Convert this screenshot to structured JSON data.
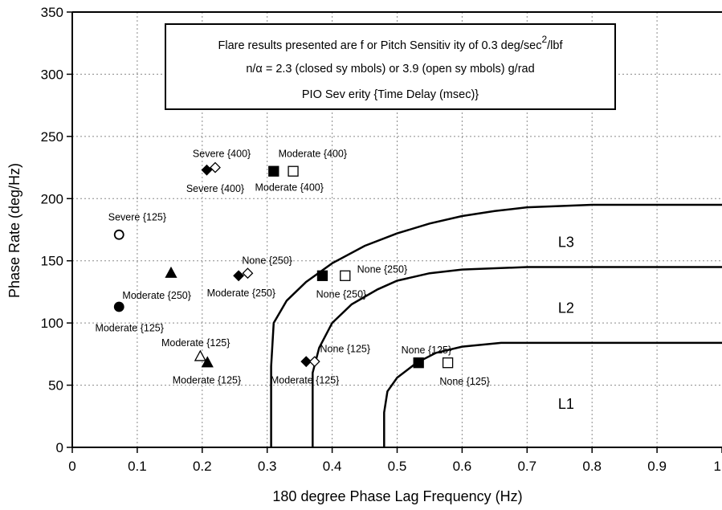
{
  "chart_data": {
    "type": "scatter",
    "xlabel": "180 degree Phase Lag Frequency (Hz)",
    "ylabel": "Phase Rate (deg/Hz)",
    "xlim": [
      0,
      1
    ],
    "ylim": [
      0,
      350
    ],
    "grid": true,
    "x_ticks": [
      "0",
      "0.1",
      "0.2",
      "0.3",
      "0.4",
      "0.5",
      "0.6",
      "0.7",
      "0.8",
      "0.9",
      "1"
    ],
    "y_ticks": [
      "0",
      "50",
      "100",
      "150",
      "200",
      "250",
      "300",
      "350"
    ],
    "annotation": {
      "line1_pre": "Flare results presented are f or Pitch Sensitiv ity  of  0.3 deg/sec",
      "line1_sup": "2",
      "line1_post": "/lbf",
      "line2": "n/α = 2.3 (closed sy mbols) or 3.9 (open sy mbols) g/rad",
      "line3": "PIO Sev erity   {Time Delay  (msec)}"
    },
    "boundaries": [
      {
        "label": "L3",
        "points": [
          [
            0.306,
            0
          ],
          [
            0.306,
            65
          ],
          [
            0.31,
            100
          ],
          [
            0.33,
            118
          ],
          [
            0.36,
            133
          ],
          [
            0.4,
            148
          ],
          [
            0.45,
            162
          ],
          [
            0.5,
            172
          ],
          [
            0.55,
            180
          ],
          [
            0.6,
            186
          ],
          [
            0.65,
            190
          ],
          [
            0.7,
            193
          ],
          [
            0.8,
            195
          ],
          [
            1.0,
            195
          ]
        ]
      },
      {
        "label": "L2",
        "points": [
          [
            0.37,
            0
          ],
          [
            0.37,
            60
          ],
          [
            0.38,
            80
          ],
          [
            0.4,
            100
          ],
          [
            0.43,
            115
          ],
          [
            0.47,
            127
          ],
          [
            0.5,
            134
          ],
          [
            0.55,
            140
          ],
          [
            0.6,
            143
          ],
          [
            0.7,
            145
          ],
          [
            1.0,
            145
          ]
        ]
      },
      {
        "label": "L1",
        "points": [
          [
            0.48,
            0
          ],
          [
            0.48,
            28
          ],
          [
            0.485,
            45
          ],
          [
            0.5,
            56
          ],
          [
            0.53,
            68
          ],
          [
            0.56,
            76
          ],
          [
            0.6,
            81
          ],
          [
            0.66,
            84
          ],
          [
            1.0,
            84
          ]
        ]
      }
    ],
    "region_labels": [
      {
        "text": "L3",
        "x": 0.76,
        "y": 165
      },
      {
        "text": "L2",
        "x": 0.76,
        "y": 112
      },
      {
        "text": "L1",
        "x": 0.76,
        "y": 35
      }
    ],
    "points": [
      {
        "shape": "diamond",
        "filled": true,
        "x": 0.207,
        "y": 223,
        "label": "Severe {400}",
        "lx": 0.22,
        "ly": 208
      },
      {
        "shape": "diamond",
        "filled": false,
        "x": 0.22,
        "y": 225,
        "label": "Severe {400}",
        "lx": 0.23,
        "ly": 236
      },
      {
        "shape": "square",
        "filled": true,
        "x": 0.31,
        "y": 222,
        "label": "Moderate {400}",
        "lx": 0.334,
        "ly": 209
      },
      {
        "shape": "square",
        "filled": false,
        "x": 0.34,
        "y": 222,
        "label": "Moderate {400}",
        "lx": 0.37,
        "ly": 236
      },
      {
        "shape": "circle",
        "filled": false,
        "x": 0.072,
        "y": 171,
        "label": "Severe {125}",
        "lx": 0.1,
        "ly": 185
      },
      {
        "shape": "triangle",
        "filled": true,
        "x": 0.152,
        "y": 140,
        "label": "Moderate {250}",
        "lx": 0.13,
        "ly": 122
      },
      {
        "shape": "circle",
        "filled": true,
        "x": 0.072,
        "y": 113,
        "label": "Moderate {125}",
        "lx": 0.088,
        "ly": 96
      },
      {
        "shape": "diamond",
        "filled": true,
        "x": 0.256,
        "y": 138,
        "label": "Moderate {250}",
        "lx": 0.26,
        "ly": 124
      },
      {
        "shape": "diamond",
        "filled": false,
        "x": 0.27,
        "y": 140,
        "label": "None {250}",
        "lx": 0.3,
        "ly": 150
      },
      {
        "shape": "square",
        "filled": true,
        "x": 0.385,
        "y": 138,
        "label": "None {250}",
        "lx": 0.414,
        "ly": 123
      },
      {
        "shape": "square",
        "filled": false,
        "x": 0.42,
        "y": 138,
        "label": "None {250}",
        "lx": 0.477,
        "ly": 143
      },
      {
        "shape": "triangle",
        "filled": false,
        "x": 0.197,
        "y": 73,
        "label": "Moderate {125}",
        "lx": 0.19,
        "ly": 84
      },
      {
        "shape": "triangle",
        "filled": true,
        "x": 0.208,
        "y": 68,
        "label": "Moderate {125}",
        "lx": 0.207,
        "ly": 54
      },
      {
        "shape": "diamond",
        "filled": true,
        "x": 0.36,
        "y": 69,
        "label": "Moderate {125}",
        "lx": 0.358,
        "ly": 54
      },
      {
        "shape": "diamond",
        "filled": false,
        "x": 0.373,
        "y": 69,
        "label": "None {125}",
        "lx": 0.42,
        "ly": 79
      },
      {
        "shape": "square",
        "filled": true,
        "x": 0.533,
        "y": 68,
        "label": "None {125}",
        "lx": 0.545,
        "ly": 78
      },
      {
        "shape": "square",
        "filled": false,
        "x": 0.578,
        "y": 68,
        "label": "None {125}",
        "lx": 0.604,
        "ly": 53
      }
    ]
  }
}
